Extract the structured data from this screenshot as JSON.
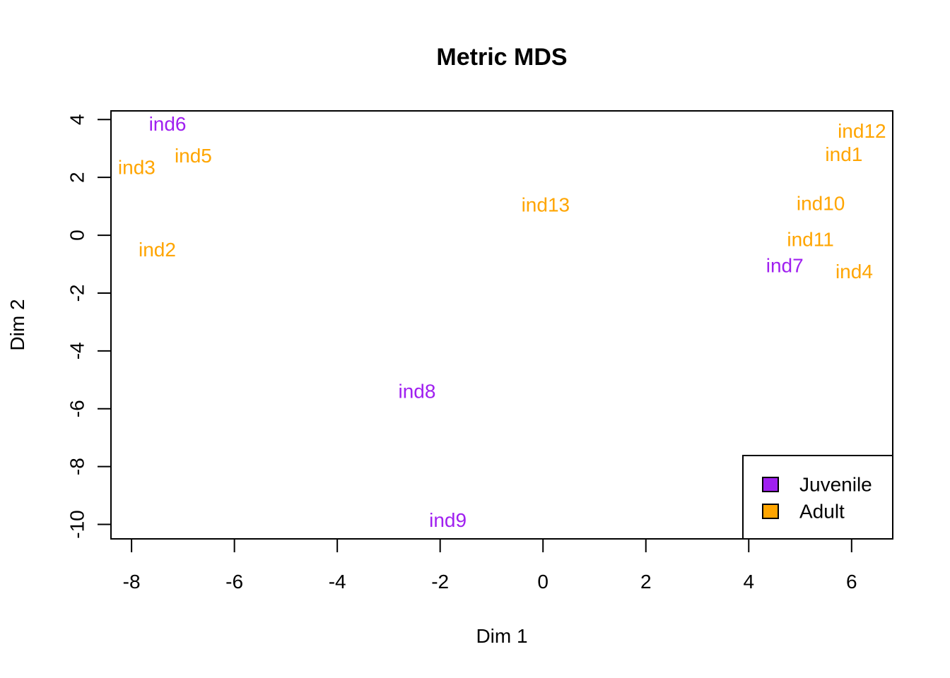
{
  "chart_data": {
    "type": "scatter",
    "title": "Metric MDS",
    "xlabel": "Dim 1",
    "ylabel": "Dim 2",
    "xlim": [
      -8.4,
      6.8
    ],
    "ylim": [
      -10.5,
      4.3
    ],
    "xticks": [
      -8,
      -6,
      -4,
      -2,
      0,
      2,
      4,
      6
    ],
    "yticks": [
      -10,
      -8,
      -6,
      -4,
      -2,
      0,
      2,
      4
    ],
    "grid": false,
    "legend_position": "bottom-right",
    "groups": [
      {
        "name": "Juvenile",
        "color": "#A020F0"
      },
      {
        "name": "Adult",
        "color": "#FFA500"
      }
    ],
    "points": [
      {
        "label": "ind6",
        "x": -7.3,
        "y": 3.85,
        "group": "Juvenile"
      },
      {
        "label": "ind5",
        "x": -6.8,
        "y": 2.75,
        "group": "Adult"
      },
      {
        "label": "ind3",
        "x": -7.9,
        "y": 2.35,
        "group": "Adult"
      },
      {
        "label": "ind2",
        "x": -7.5,
        "y": -0.5,
        "group": "Adult"
      },
      {
        "label": "ind13",
        "x": 0.05,
        "y": 1.05,
        "group": "Adult"
      },
      {
        "label": "ind12",
        "x": 6.2,
        "y": 3.6,
        "group": "Adult"
      },
      {
        "label": "ind1",
        "x": 5.85,
        "y": 2.8,
        "group": "Adult"
      },
      {
        "label": "ind10",
        "x": 5.4,
        "y": 1.1,
        "group": "Adult"
      },
      {
        "label": "ind11",
        "x": 5.2,
        "y": -0.15,
        "group": "Adult"
      },
      {
        "label": "ind7",
        "x": 4.7,
        "y": -1.05,
        "group": "Juvenile"
      },
      {
        "label": "ind4",
        "x": 6.05,
        "y": -1.25,
        "group": "Adult"
      },
      {
        "label": "ind8",
        "x": -2.45,
        "y": -5.4,
        "group": "Juvenile"
      },
      {
        "label": "ind9",
        "x": -1.85,
        "y": -9.85,
        "group": "Juvenile"
      }
    ]
  }
}
